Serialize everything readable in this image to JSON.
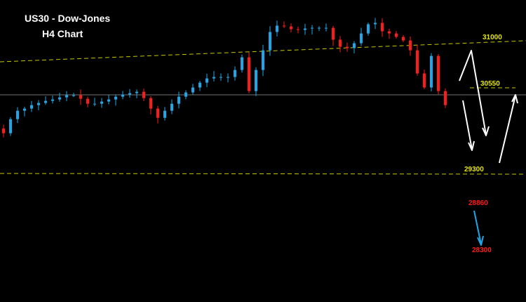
{
  "chart_data": {
    "type": "candlestick",
    "title": "US30 - Dow-Jones",
    "subtitle": "H4 Chart",
    "ylim": [
      27650,
      31560
    ],
    "grid": false,
    "colors": {
      "bull": "#1ea7e8",
      "bear": "#ff1a1a",
      "background": "#000000",
      "level": "#c8c800",
      "arrow": "#ffffff",
      "target_arrow": "#1ea7e8"
    },
    "closes": [
      29835,
      30017,
      30126,
      30154,
      30199,
      30227,
      30254,
      30272,
      30299,
      30327,
      30327,
      30281,
      30217,
      30217,
      30245,
      30272,
      30308,
      30336,
      30354,
      30372,
      30290,
      30154,
      30035,
      30126,
      30217,
      30308,
      30363,
      30427,
      30490,
      30545,
      30563,
      30563,
      30563,
      30654,
      30818,
      30381,
      30654,
      30909,
      31146,
      31228,
      31218,
      31182,
      31173,
      31191,
      31200,
      31200,
      31200,
      31046,
      30955,
      30937,
      31000,
      31127,
      31246,
      31264,
      31155,
      31127,
      31082,
      31036,
      30909,
      30609,
      30427,
      30836,
      30381,
      30199
    ],
    "levels": [
      {
        "label": "31000",
        "color": "#c8c800",
        "style": "dashed"
      },
      {
        "label": "30550",
        "color": "#c8c800",
        "style": "dashed"
      },
      {
        "label": "29300",
        "color": "#c8c800",
        "style": "dashed"
      },
      {
        "label": "28860",
        "color": "#ff1a1a"
      },
      {
        "label": "28300",
        "color": "#ff1a1a"
      }
    ]
  }
}
